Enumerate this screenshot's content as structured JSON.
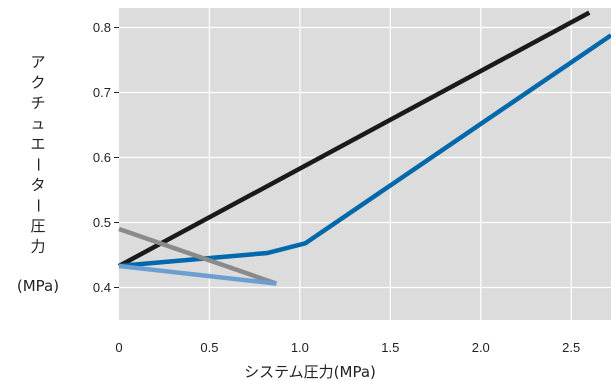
{
  "chart_data": {
    "type": "line",
    "xlabel": "システム圧力(MPa)",
    "ylabel": "アクチュエーター圧力",
    "ylabel_unit": "(MPa)",
    "xlim": [
      0,
      2.72
    ],
    "ylim": [
      0.35,
      0.83
    ],
    "x_ticks": [
      0,
      0.5,
      1.0,
      1.5,
      2.0,
      2.5
    ],
    "x_tick_labels": [
      "0",
      "0.5",
      "1.0",
      "1.5",
      "2.0",
      "2.5"
    ],
    "y_ticks": [
      0.4,
      0.5,
      0.6,
      0.7,
      0.8
    ],
    "y_tick_labels": [
      "0.4",
      "0.5",
      "0.6",
      "0.7",
      "0.8"
    ],
    "grid": true,
    "background_color": "#dcdcdd",
    "grid_color": "#ffffff",
    "series": [
      {
        "color": "#1a1a1a",
        "x": [
          0,
          2.6
        ],
        "y": [
          0.433,
          0.823
        ]
      },
      {
        "color": "#0068ab",
        "x": [
          0,
          0.82,
          1.03,
          2.72
        ],
        "y": [
          0.433,
          0.453,
          0.468,
          0.788
        ]
      },
      {
        "color": "#8a8a8a",
        "x": [
          0,
          0.87
        ],
        "y": [
          0.49,
          0.406
        ]
      },
      {
        "color": "#6a9fd0",
        "x": [
          0,
          0.87
        ],
        "y": [
          0.433,
          0.406
        ]
      }
    ]
  }
}
